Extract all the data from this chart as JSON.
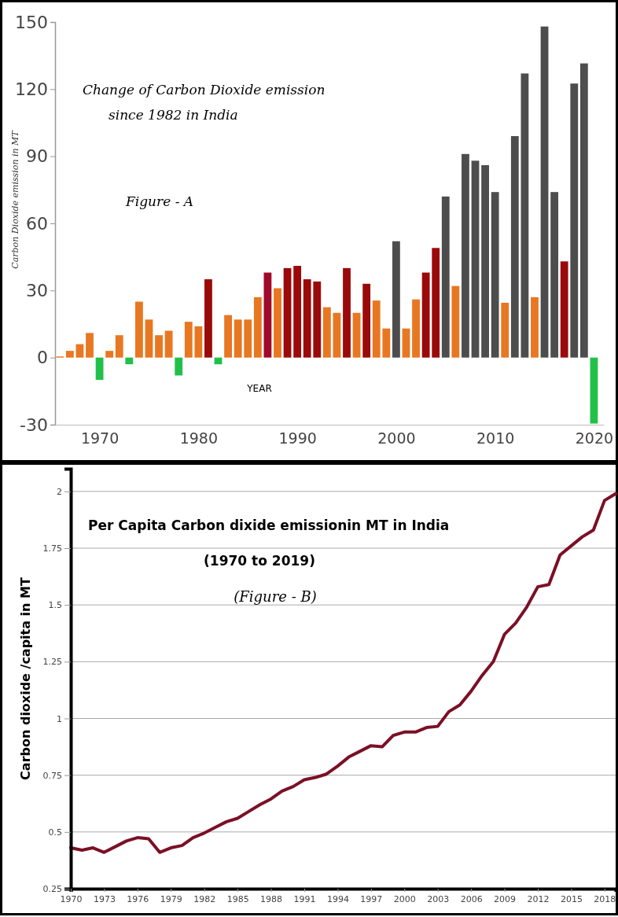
{
  "chart_data": [
    {
      "type": "bar",
      "title": "Change of Carbon Dioxide emission since 1982 in India",
      "ylabel": "Carbon Dioxide emission in MT",
      "xlabel": "YEAR",
      "annotations": [
        "Figure - A"
      ],
      "x": [
        1966,
        1967,
        1968,
        1969,
        1970,
        1971,
        1972,
        1973,
        1974,
        1975,
        1976,
        1977,
        1978,
        1979,
        1980,
        1981,
        1982,
        1983,
        1984,
        1985,
        1986,
        1987,
        1988,
        1989,
        1990,
        1991,
        1992,
        1993,
        1994,
        1995,
        1996,
        1997,
        1998,
        1999,
        2000,
        2001,
        2002,
        2003,
        2004,
        2005,
        2006,
        2007,
        2008,
        2009,
        2010,
        2011,
        2012,
        2013,
        2014,
        2015,
        2016,
        2017,
        2018,
        2019,
        2020
      ],
      "values": [
        0.5,
        3,
        6,
        11,
        -10,
        3,
        10,
        -3,
        25,
        17,
        10,
        12,
        -8,
        16,
        14,
        35,
        -3,
        19,
        17,
        17,
        27,
        38,
        31,
        40,
        41,
        35,
        34,
        22.5,
        20,
        40,
        20,
        33,
        25.5,
        13,
        52,
        13,
        26,
        38,
        49,
        72,
        32,
        91,
        88,
        86,
        74,
        24.5,
        99,
        127,
        27,
        148,
        74,
        43,
        122.5,
        131.5,
        -29.5
      ],
      "colors": [
        "#e87722",
        "#e87722",
        "#e87722",
        "#e87722",
        "#22c04a",
        "#e87722",
        "#e87722",
        "#22c04a",
        "#e87722",
        "#e87722",
        "#e87722",
        "#e87722",
        "#22c04a",
        "#e87722",
        "#e87722",
        "#9b0a0a",
        "#22c04a",
        "#e87722",
        "#e87722",
        "#e87722",
        "#e87722",
        "#a00a2a",
        "#e87722",
        "#9b0a0a",
        "#9b0a0a",
        "#9b0a0a",
        "#9b0a0a",
        "#e87722",
        "#e87722",
        "#9b0a0a",
        "#e87722",
        "#9b0a0a",
        "#e87722",
        "#e87722",
        "#4d4d4d",
        "#e87722",
        "#e87722",
        "#9b0a0a",
        "#9b0a0a",
        "#4d4d4d",
        "#e87722",
        "#4d4d4d",
        "#4d4d4d",
        "#4d4d4d",
        "#4d4d4d",
        "#e87722",
        "#4d4d4d",
        "#4d4d4d",
        "#e87722",
        "#4d4d4d",
        "#4d4d4d",
        "#9b0a0a",
        "#4d4d4d",
        "#4d4d4d",
        "#22c04a"
      ],
      "xlim": [
        1965.5,
        2021
      ],
      "xticks": [
        1970,
        1980,
        1990,
        2000,
        2010,
        2020
      ],
      "ylim": [
        -30,
        150
      ],
      "yticks": [
        -30,
        0,
        30,
        60,
        90,
        120,
        150
      ],
      "grid": false
    },
    {
      "type": "line",
      "title": "Per Capita Carbon dixide emissionin MT in India",
      "subtitle": "(1970 to 2019)",
      "ylabel": "Carbon dioxide /capita in MT",
      "annotations": [
        "(Figure - B)"
      ],
      "x": [
        1970,
        1971,
        1972,
        1973,
        1974,
        1975,
        1976,
        1977,
        1978,
        1979,
        1980,
        1981,
        1982,
        1983,
        1984,
        1985,
        1986,
        1987,
        1988,
        1989,
        1990,
        1991,
        1992,
        1993,
        1994,
        1995,
        1996,
        1997,
        1998,
        1999,
        2000,
        2001,
        2002,
        2003,
        2004,
        2005,
        2006,
        2007,
        2008,
        2009,
        2010,
        2011,
        2012,
        2013,
        2014,
        2015,
        2016,
        2017,
        2018,
        2019
      ],
      "series": [
        {
          "color": "#7b1025",
          "values": [
            0.43,
            0.42,
            0.43,
            0.41,
            0.435,
            0.46,
            0.475,
            0.47,
            0.41,
            0.43,
            0.44,
            0.475,
            0.495,
            0.52,
            0.545,
            0.56,
            0.59,
            0.62,
            0.645,
            0.68,
            0.7,
            0.73,
            0.74,
            0.755,
            0.79,
            0.83,
            0.855,
            0.88,
            0.875,
            0.925,
            0.94,
            0.94,
            0.96,
            0.965,
            1.03,
            1.06,
            1.12,
            1.19,
            1.25,
            1.37,
            1.42,
            1.49,
            1.58,
            1.59,
            1.72,
            1.76,
            1.8,
            1.83,
            1.96,
            1.99
          ]
        }
      ],
      "xlim": [
        1970,
        2019
      ],
      "xticks": [
        1970,
        1973,
        1976,
        1979,
        1982,
        1985,
        1988,
        1991,
        1994,
        1997,
        2000,
        2003,
        2006,
        2009,
        2012,
        2015,
        2018
      ],
      "ylim": [
        0.25,
        2.1
      ],
      "yticks": [
        0.25,
        0.5,
        0.75,
        1,
        1.25,
        1.5,
        1.75,
        2
      ],
      "grid": "y",
      "marker": "none",
      "line_style": "solid"
    }
  ]
}
